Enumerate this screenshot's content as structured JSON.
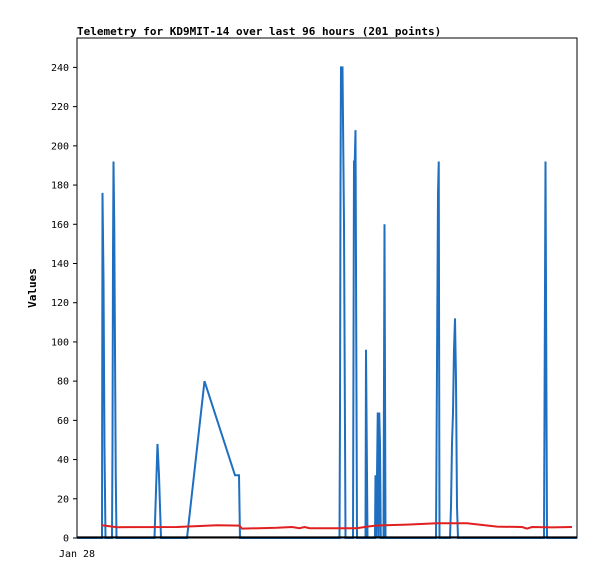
{
  "chart_data": {
    "type": "line",
    "title": "Telemetry for KD9MIT-14 over last 96 hours (201 points)",
    "ylabel": "Values",
    "xlabel": "",
    "x_ticks": [
      "Jan 28"
    ],
    "ylim": [
      0,
      255
    ],
    "y_ticks": [
      0,
      20,
      40,
      60,
      80,
      100,
      120,
      140,
      160,
      180,
      200,
      220,
      240
    ],
    "xlim": [
      0,
      100
    ],
    "grid": false,
    "series": [
      {
        "color": "#1f6fc0",
        "points": [
          [
            0,
            0
          ],
          [
            5.0,
            0
          ],
          [
            5.1,
            176
          ],
          [
            5.3,
            132
          ],
          [
            5.5,
            45
          ],
          [
            5.7,
            0
          ],
          [
            7.0,
            0
          ],
          [
            7.1,
            48
          ],
          [
            7.2,
            144
          ],
          [
            7.3,
            192
          ],
          [
            7.45,
            160
          ],
          [
            7.6,
            96
          ],
          [
            7.75,
            32
          ],
          [
            7.9,
            0
          ],
          [
            15.5,
            0
          ],
          [
            15.7,
            16
          ],
          [
            16.1,
            48
          ],
          [
            16.4,
            32
          ],
          [
            16.8,
            0
          ],
          [
            22.0,
            0
          ],
          [
            25.5,
            80
          ],
          [
            31.6,
            32
          ],
          [
            32.4,
            32
          ],
          [
            32.6,
            0
          ],
          [
            52.5,
            0
          ],
          [
            52.6,
            64
          ],
          [
            52.7,
            180
          ],
          [
            52.8,
            240
          ],
          [
            52.95,
            240
          ],
          [
            53.1,
            240
          ],
          [
            53.25,
            200
          ],
          [
            53.4,
            160
          ],
          [
            53.55,
            80
          ],
          [
            53.7,
            0
          ],
          [
            55.2,
            0
          ],
          [
            55.3,
            96
          ],
          [
            55.4,
            192
          ],
          [
            55.55,
            192
          ],
          [
            55.7,
            208
          ],
          [
            55.85,
            104
          ],
          [
            56.0,
            0
          ],
          [
            57.7,
            0
          ],
          [
            57.8,
            96
          ],
          [
            57.95,
            48
          ],
          [
            58.1,
            0
          ],
          [
            59.6,
            0
          ],
          [
            59.7,
            32
          ],
          [
            59.85,
            0
          ],
          [
            60.0,
            32
          ],
          [
            60.15,
            64
          ],
          [
            60.3,
            0
          ],
          [
            60.45,
            64
          ],
          [
            60.6,
            48
          ],
          [
            60.75,
            0
          ],
          [
            61.3,
            0
          ],
          [
            61.4,
            80
          ],
          [
            61.5,
            160
          ],
          [
            61.6,
            80
          ],
          [
            61.7,
            0
          ],
          [
            71.8,
            0
          ],
          [
            72.0,
            88
          ],
          [
            72.2,
            176
          ],
          [
            72.35,
            192
          ],
          [
            72.5,
            0
          ],
          [
            74.6,
            0
          ],
          [
            74.8,
            16
          ],
          [
            75.0,
            48
          ],
          [
            75.2,
            64
          ],
          [
            75.4,
            96
          ],
          [
            75.6,
            112
          ],
          [
            75.8,
            80
          ],
          [
            76.0,
            16
          ],
          [
            76.2,
            0
          ],
          [
            93.4,
            0
          ],
          [
            93.55,
            96
          ],
          [
            93.7,
            192
          ],
          [
            93.85,
            96
          ],
          [
            94.0,
            0
          ],
          [
            100,
            0
          ]
        ]
      },
      {
        "color": "#e02020",
        "points": [
          [
            5.0,
            6.5
          ],
          [
            8,
            5.5
          ],
          [
            20,
            5.6
          ],
          [
            28,
            6.5
          ],
          [
            32.5,
            6.3
          ],
          [
            33,
            4.8
          ],
          [
            40,
            5.2
          ],
          [
            43,
            5.6
          ],
          [
            44.5,
            5.0
          ],
          [
            45.5,
            5.6
          ],
          [
            46.5,
            5.0
          ],
          [
            56,
            5.0
          ],
          [
            58,
            5.8
          ],
          [
            60,
            6.4
          ],
          [
            66,
            6.8
          ],
          [
            72,
            7.5
          ],
          [
            78,
            7.5
          ],
          [
            84,
            5.8
          ],
          [
            89,
            5.6
          ],
          [
            90,
            4.8
          ],
          [
            91,
            5.6
          ],
          [
            95,
            5.4
          ],
          [
            99,
            5.6
          ]
        ]
      },
      {
        "color": "#000000",
        "points": [
          [
            0,
            0.3
          ],
          [
            100,
            0.3
          ]
        ]
      }
    ]
  }
}
